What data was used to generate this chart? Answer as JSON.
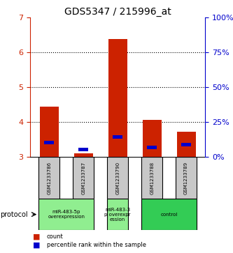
{
  "title": "GDS5347 / 215996_at",
  "samples": [
    "GSM1233786",
    "GSM1233787",
    "GSM1233790",
    "GSM1233788",
    "GSM1233789"
  ],
  "red_values": [
    4.45,
    3.1,
    6.38,
    4.07,
    3.72
  ],
  "blue_values": [
    3.42,
    3.22,
    3.57,
    3.28,
    3.35
  ],
  "red_base": 3.0,
  "ylim": [
    3.0,
    7.0
  ],
  "yticks": [
    3,
    4,
    5,
    6,
    7
  ],
  "right_yticks": [
    0,
    25,
    50,
    75,
    100
  ],
  "protocols": [
    {
      "label": "miR-483-5p\noverexpression",
      "cols": [
        0,
        1
      ],
      "color": "#90EE90"
    },
    {
      "label": "miR-483-3\np overexpr\nession",
      "cols": [
        2
      ],
      "color": "#90EE90"
    },
    {
      "label": "control",
      "cols": [
        3,
        4
      ],
      "color": "#33CC55"
    }
  ],
  "protocol_label": "protocol",
  "legend_red": "count",
  "legend_blue": "percentile rank within the sample",
  "bar_width": 0.55,
  "red_color": "#CC2200",
  "blue_color": "#0000CC",
  "gray_color": "#C8C8C8"
}
